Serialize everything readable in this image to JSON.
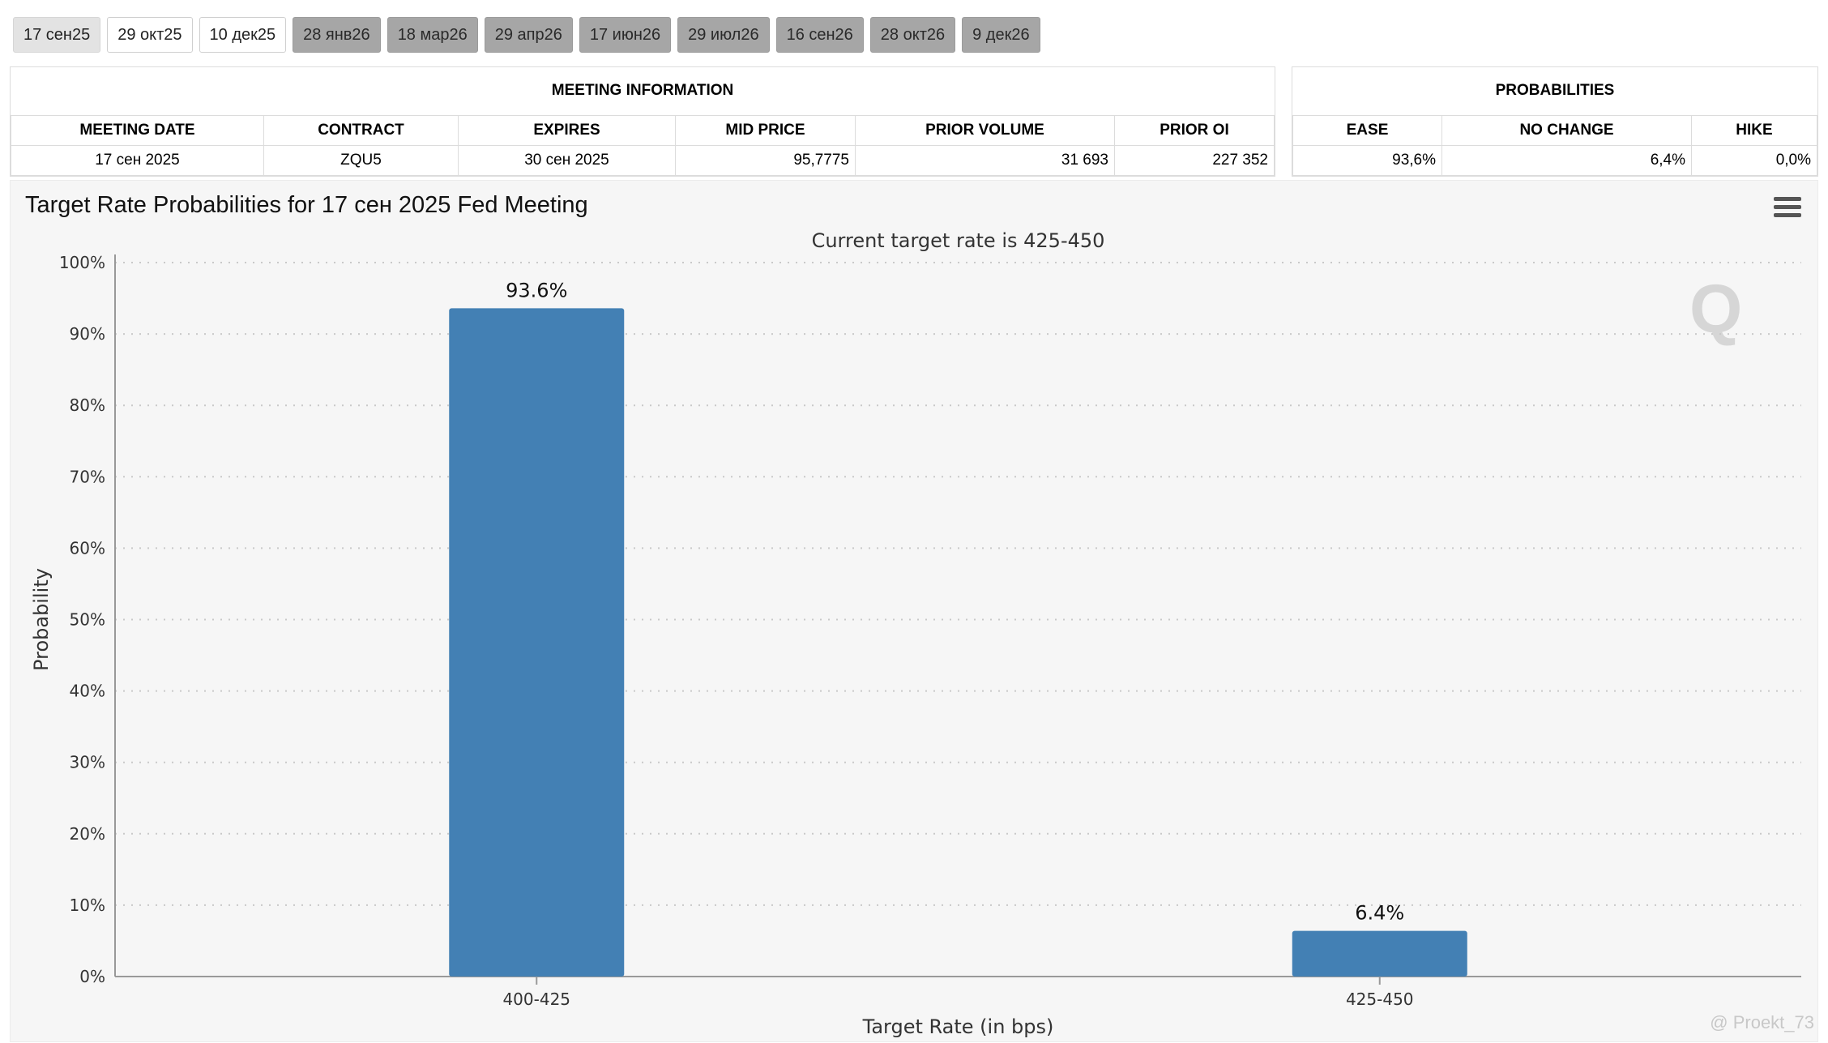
{
  "tabs": [
    {
      "label": "17 сен25",
      "state": "active"
    },
    {
      "label": "29 окт25",
      "state": "normal"
    },
    {
      "label": "10 дек25",
      "state": "normal"
    },
    {
      "label": "28 янв26",
      "state": "future"
    },
    {
      "label": "18 мар26",
      "state": "future"
    },
    {
      "label": "29 апр26",
      "state": "future"
    },
    {
      "label": "17 июн26",
      "state": "future"
    },
    {
      "label": "29 июл26",
      "state": "future"
    },
    {
      "label": "16 сен26",
      "state": "future"
    },
    {
      "label": "28 окт26",
      "state": "future"
    },
    {
      "label": "9 дек26",
      "state": "future"
    }
  ],
  "meeting_info": {
    "caption": "MEETING INFORMATION",
    "headers": [
      "MEETING DATE",
      "CONTRACT",
      "EXPIRES",
      "MID PRICE",
      "PRIOR VOLUME",
      "PRIOR OI"
    ],
    "row": [
      "17 сен 2025",
      "ZQU5",
      "30 сен 2025",
      "95,7775",
      "31 693",
      "227 352"
    ]
  },
  "probabilities": {
    "caption": "PROBABILITIES",
    "headers": [
      "EASE",
      "NO CHANGE",
      "HIKE"
    ],
    "row": [
      "93,6%",
      "6,4%",
      "0,0%"
    ]
  },
  "chart_data": {
    "type": "bar",
    "title": "Target Rate Probabilities for 17 сен 2025 Fed Meeting",
    "subtitle": "Current target rate is 425-450",
    "xlabel": "Target Rate (in bps)",
    "ylabel": "Probability",
    "categories": [
      "400-425",
      "425-450"
    ],
    "values": [
      93.6,
      6.4
    ],
    "data_labels": [
      "93.6%",
      "6.4%"
    ],
    "ylim": [
      0,
      100
    ],
    "yticks": [
      "0%",
      "10%",
      "20%",
      "30%",
      "40%",
      "50%",
      "60%",
      "70%",
      "80%",
      "90%",
      "100%"
    ],
    "grid": true,
    "bar_color": "#4380b4"
  },
  "watermark": "Q",
  "credit": "@ Proekt_73"
}
